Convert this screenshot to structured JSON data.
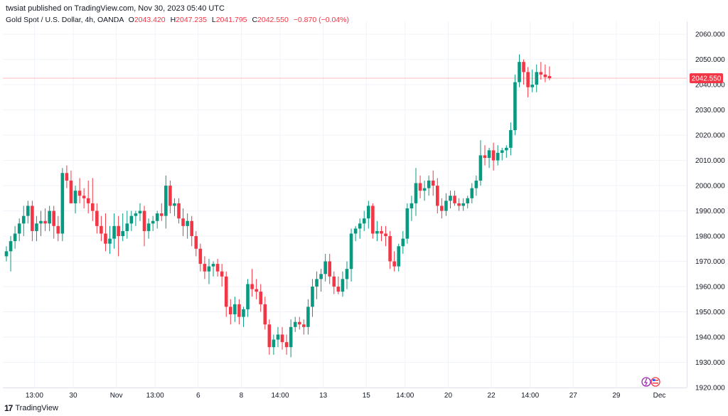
{
  "header": {
    "published": "twsiat published on TradingView.com, Nov 30, 2023 05:40 UTC"
  },
  "ohlc": {
    "symbol": "Gold Spot / U.S. Dollar, 4h, OANDA",
    "open_label": "O",
    "open": "2043.420",
    "high_label": "H",
    "high": "2047.235",
    "low_label": "L",
    "low": "2041.795",
    "close_label": "C",
    "close": "2042.550",
    "change": "−0.870 (−0.04%)"
  },
  "footer": {
    "brand": "TradingView",
    "logo_text": "17"
  },
  "colors": {
    "up": "#089981",
    "down": "#f23645",
    "grid": "#f0f3fa",
    "axis_text": "#131722",
    "price_line": "#f23645"
  },
  "chart_data": {
    "type": "candlestick",
    "title": "Gold Spot / U.S. Dollar, 4h, OANDA",
    "ylim": [
      1920,
      2065
    ],
    "y_ticks": [
      "2060.000",
      "2050.000",
      "2040.000",
      "2030.000",
      "2020.000",
      "2010.000",
      "2000.000",
      "1990.000",
      "1980.000",
      "1970.000",
      "1960.000",
      "1950.000",
      "1940.000",
      "1930.000",
      "1920.000"
    ],
    "x_ticks": [
      {
        "label": "13:00",
        "bar": 6.5
      },
      {
        "label": "30",
        "bar": 15.5
      },
      {
        "label": "Nov",
        "bar": 25.5
      },
      {
        "label": "13:00",
        "bar": 34.5
      },
      {
        "label": "6",
        "bar": 44.5
      },
      {
        "label": "8",
        "bar": 54.5
      },
      {
        "label": "14:00",
        "bar": 63.5
      },
      {
        "label": "13",
        "bar": 73.5
      },
      {
        "label": "15",
        "bar": 83.5
      },
      {
        "label": "14:00",
        "bar": 92.5
      },
      {
        "label": "20",
        "bar": 102.5
      },
      {
        "label": "22",
        "bar": 112.5
      },
      {
        "label": "14:00",
        "bar": 121.5
      },
      {
        "label": "27",
        "bar": 131.5
      },
      {
        "label": "29",
        "bar": 141.5
      },
      {
        "label": "Dec",
        "bar": 151.5
      }
    ],
    "last_price": "2042.550",
    "last_value": 2042.55,
    "candles": [
      [
        1972,
        1976,
        1970,
        1974
      ],
      [
        1974,
        1980,
        1966,
        1978
      ],
      [
        1978,
        1984,
        1975,
        1981
      ],
      [
        1981,
        1987,
        1978,
        1985
      ],
      [
        1985,
        1992,
        1980,
        1988
      ],
      [
        1988,
        1994,
        1985,
        1992
      ],
      [
        1992,
        1994,
        1978,
        1982
      ],
      [
        1982,
        1988,
        1978,
        1985
      ],
      [
        1985,
        1990,
        1980,
        1986
      ],
      [
        1986,
        1991,
        1982,
        1985
      ],
      [
        1985,
        1992,
        1982,
        1990
      ],
      [
        1990,
        1992,
        1979,
        1984
      ],
      [
        1984,
        1988,
        1978,
        1981
      ],
      [
        1981,
        2007,
        1978,
        2005
      ],
      [
        2005,
        2008,
        1999,
        2002
      ],
      [
        2002,
        2006,
        1994,
        1993
      ],
      [
        1993,
        2000,
        1989,
        1998
      ],
      [
        1998,
        2003,
        1993,
        1996
      ],
      [
        1996,
        1999,
        1991,
        1995
      ],
      [
        1995,
        2002,
        1989,
        1993
      ],
      [
        1993,
        2003,
        1986,
        1990
      ],
      [
        1990,
        1993,
        1981,
        1984
      ],
      [
        1984,
        1988,
        1978,
        1981
      ],
      [
        1981,
        1989,
        1974,
        1977
      ],
      [
        1977,
        1984,
        1973,
        1979
      ],
      [
        1979,
        1989,
        1975,
        1984
      ],
      [
        1984,
        1988,
        1972,
        1980
      ],
      [
        1980,
        1989,
        1978,
        1982
      ],
      [
        1982,
        1990,
        1979,
        1985
      ],
      [
        1985,
        1990,
        1982,
        1988
      ],
      [
        1988,
        1990,
        1984,
        1989
      ],
      [
        1989,
        1993,
        1986,
        1990
      ],
      [
        1990,
        1992,
        1976,
        1982
      ],
      [
        1982,
        1987,
        1979,
        1985
      ],
      [
        1985,
        1988,
        1982,
        1986
      ],
      [
        1986,
        1990,
        1983,
        1989
      ],
      [
        1989,
        1993,
        1986,
        1988
      ],
      [
        1988,
        2004,
        1983,
        2000
      ],
      [
        2000,
        2002,
        1989,
        1992
      ],
      [
        1992,
        1995,
        1988,
        1993
      ],
      [
        1993,
        1995,
        1985,
        1987
      ],
      [
        1987,
        1991,
        1980,
        1984
      ],
      [
        1984,
        1989,
        1979,
        1986
      ],
      [
        1986,
        1988,
        1976,
        1980
      ],
      [
        1980,
        1982,
        1972,
        1975
      ],
      [
        1975,
        1977,
        1966,
        1969
      ],
      [
        1969,
        1972,
        1963,
        1966
      ],
      [
        1966,
        1971,
        1961,
        1968
      ],
      [
        1968,
        1970,
        1964,
        1969
      ],
      [
        1969,
        1971,
        1964,
        1966
      ],
      [
        1966,
        1969,
        1960,
        1964
      ],
      [
        1964,
        1966,
        1948,
        1952
      ],
      [
        1952,
        1955,
        1945,
        1949
      ],
      [
        1949,
        1956,
        1946,
        1953
      ],
      [
        1953,
        1955,
        1945,
        1948
      ],
      [
        1948,
        1952,
        1944,
        1951
      ],
      [
        1951,
        1963,
        1948,
        1961
      ],
      [
        1961,
        1967,
        1956,
        1959
      ],
      [
        1959,
        1963,
        1955,
        1958
      ],
      [
        1958,
        1961,
        1950,
        1953
      ],
      [
        1953,
        1956,
        1943,
        1945
      ],
      [
        1945,
        1947,
        1933,
        1936
      ],
      [
        1936,
        1941,
        1933,
        1939
      ],
      [
        1939,
        1944,
        1936,
        1941
      ],
      [
        1941,
        1944,
        1935,
        1938
      ],
      [
        1938,
        1941,
        1933,
        1936
      ],
      [
        1936,
        1947,
        1932,
        1944
      ],
      [
        1944,
        1948,
        1942,
        1946
      ],
      [
        1946,
        1948,
        1943,
        1945
      ],
      [
        1945,
        1947,
        1941,
        1944
      ],
      [
        1944,
        1955,
        1941,
        1952
      ],
      [
        1952,
        1963,
        1948,
        1960
      ],
      [
        1960,
        1966,
        1955,
        1963
      ],
      [
        1963,
        1967,
        1958,
        1965
      ],
      [
        1965,
        1973,
        1962,
        1970
      ],
      [
        1970,
        1973,
        1961,
        1964
      ],
      [
        1964,
        1966,
        1957,
        1960
      ],
      [
        1960,
        1964,
        1957,
        1958
      ],
      [
        1958,
        1966,
        1956,
        1963
      ],
      [
        1963,
        1970,
        1959,
        1967
      ],
      [
        1967,
        1983,
        1962,
        1981
      ],
      [
        1981,
        1984,
        1978,
        1983
      ],
      [
        1983,
        1987,
        1979,
        1985
      ],
      [
        1985,
        1990,
        1982,
        1987
      ],
      [
        1987,
        1994,
        1983,
        1992
      ],
      [
        1992,
        1993,
        1979,
        1981
      ],
      [
        1981,
        1986,
        1978,
        1982
      ],
      [
        1982,
        1984,
        1978,
        1981
      ],
      [
        1981,
        1984,
        1976,
        1980
      ],
      [
        1980,
        1982,
        1967,
        1970
      ],
      [
        1970,
        1974,
        1966,
        1968
      ],
      [
        1968,
        1977,
        1966,
        1976
      ],
      [
        1976,
        1982,
        1973,
        1979
      ],
      [
        1979,
        1993,
        1977,
        1991
      ],
      [
        1991,
        1996,
        1986,
        1993
      ],
      [
        1993,
        2007,
        1988,
        2001
      ],
      [
        2001,
        2004,
        1995,
        1998
      ],
      [
        1998,
        2002,
        1994,
        1999
      ],
      [
        1999,
        2004,
        1996,
        2002
      ],
      [
        2002,
        2006,
        1996,
        2000
      ],
      [
        2000,
        2003,
        1989,
        1992
      ],
      [
        1992,
        1995,
        1987,
        1990
      ],
      [
        1990,
        1997,
        1988,
        1994
      ],
      [
        1994,
        1998,
        1991,
        1996
      ],
      [
        1996,
        1998,
        1992,
        1993
      ],
      [
        1993,
        1995,
        1990,
        1992
      ],
      [
        1992,
        1995,
        1990,
        1993
      ],
      [
        1993,
        1996,
        1991,
        1995
      ],
      [
        1995,
        2001,
        1993,
        1999
      ],
      [
        1999,
        2004,
        1996,
        2002
      ],
      [
        2002,
        2018,
        2000,
        2012
      ],
      [
        2012,
        2016,
        2008,
        2011
      ],
      [
        2011,
        2015,
        2007,
        2014
      ],
      [
        2014,
        2017,
        2006,
        2010
      ],
      [
        2010,
        2016,
        2008,
        2013
      ],
      [
        2013,
        2015,
        2010,
        2014
      ],
      [
        2014,
        2016,
        2011,
        2015
      ],
      [
        2015,
        2025,
        2012,
        2022
      ],
      [
        2022,
        2044,
        2020,
        2041
      ],
      [
        2041,
        2052,
        2039,
        2049
      ],
      [
        2049,
        2050,
        2040,
        2045
      ],
      [
        2045,
        2047,
        2035,
        2039
      ],
      [
        2039,
        2046,
        2037,
        2040
      ],
      [
        2040,
        2048,
        2037,
        2045
      ],
      [
        2045,
        2049,
        2042,
        2044
      ],
      [
        2044,
        2048,
        2041,
        2043
      ],
      [
        2043.42,
        2047.235,
        2041.795,
        2042.55
      ]
    ]
  }
}
